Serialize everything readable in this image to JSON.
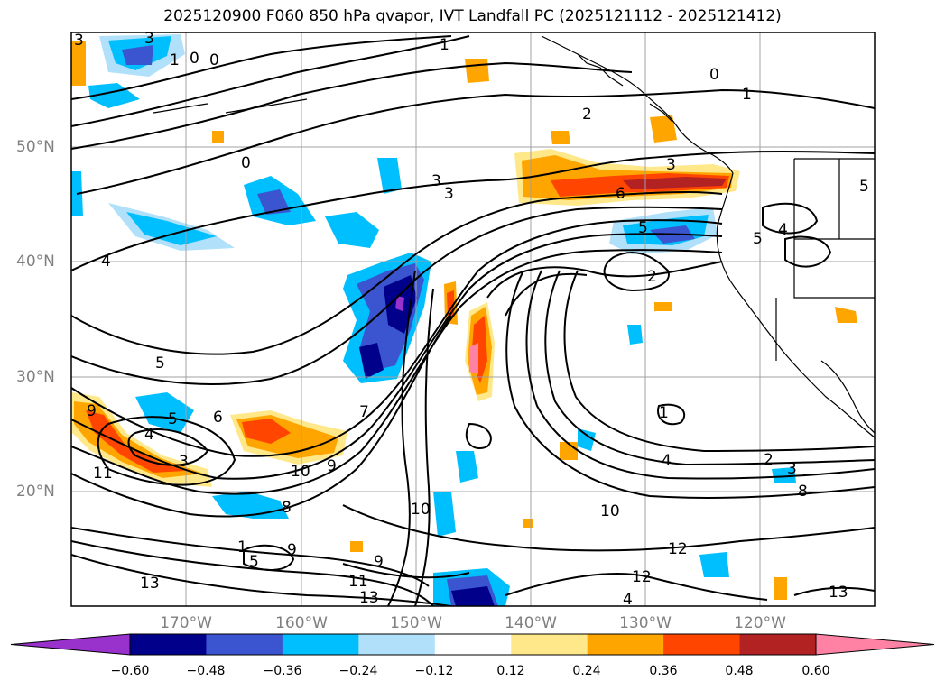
{
  "title": "2025120900 F060 850 hPa qvapor, IVT Landfall PC (2025121112 - 2025121412)",
  "axes": {
    "lon_labels": [
      "170°W",
      "160°W",
      "150°W",
      "140°W",
      "130°W",
      "120°W"
    ],
    "lat_labels": [
      "50°N",
      "40°N",
      "30°N",
      "20°N"
    ]
  },
  "contour_labels": [
    "3",
    "3",
    "1",
    "0",
    "0",
    "1",
    "2",
    "1",
    "0",
    "0",
    "3",
    "3",
    "6",
    "5",
    "4",
    "5",
    "2",
    "7",
    "5",
    "4",
    "4",
    "6",
    "5",
    "3",
    "9",
    "10",
    "9",
    "8",
    "10",
    "5",
    "1",
    "3",
    "5",
    "10",
    "12",
    "12",
    "2",
    "3",
    "4",
    "8",
    "11",
    "9",
    "9",
    "13",
    "11",
    "13",
    "1",
    "13",
    "4"
  ],
  "colorbar": {
    "ticks": [
      "−0.60",
      "−0.48",
      "−0.36",
      "−0.24",
      "−0.12",
      "0.12",
      "0.24",
      "0.36",
      "0.48",
      "0.60"
    ],
    "colors": [
      "#9932cc",
      "#00008b",
      "#3a55cf",
      "#00bfff",
      "#b0e0fa",
      "#ffffff",
      "#ffe88a",
      "#ffa500",
      "#ff4500",
      "#b22222",
      "#ff82a5"
    ]
  },
  "colors": {
    "land_outline": "#000000",
    "grid": "#a0a0a0",
    "contour": "#000000"
  }
}
